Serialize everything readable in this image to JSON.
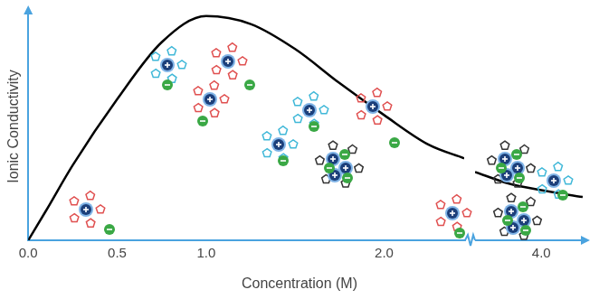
{
  "chart_data": [
    {
      "type": "line",
      "y_label": "Ionic Conductivity",
      "x_label": "Concentration (M)",
      "x": [
        0,
        0.1,
        0.25,
        0.5,
        0.75,
        1.0,
        1.25,
        1.5,
        1.75,
        2.0,
        2.25,
        2.45
      ],
      "values": [
        0,
        0.13,
        0.33,
        0.62,
        0.87,
        0.985,
        0.95,
        0.84,
        0.69,
        0.55,
        0.42,
        0.36
      ],
      "color": "#000000",
      "xlim": [
        0,
        2.45
      ],
      "xticks": [
        {
          "value": 0,
          "label": "0.0"
        },
        {
          "value": 0.5,
          "label": "0.5"
        },
        {
          "value": 1,
          "label": "1.0"
        },
        {
          "value": 2,
          "label": "2.0"
        }
      ],
      "ylim": [
        0,
        1
      ],
      "tick_labels": "x",
      "grid": false
    },
    {
      "type": "line",
      "x": [
        3.6,
        3.8,
        4.0,
        4.25
      ],
      "values": [
        0.3,
        0.25,
        0.22,
        0.19
      ],
      "color": "#000000",
      "xlim": [
        3.6,
        4.25
      ],
      "xticks": [
        {
          "value": 4,
          "label": "4.0"
        }
      ],
      "ylim": [
        0,
        1
      ],
      "tick_labels": "x",
      "grid": false
    }
  ]
}
